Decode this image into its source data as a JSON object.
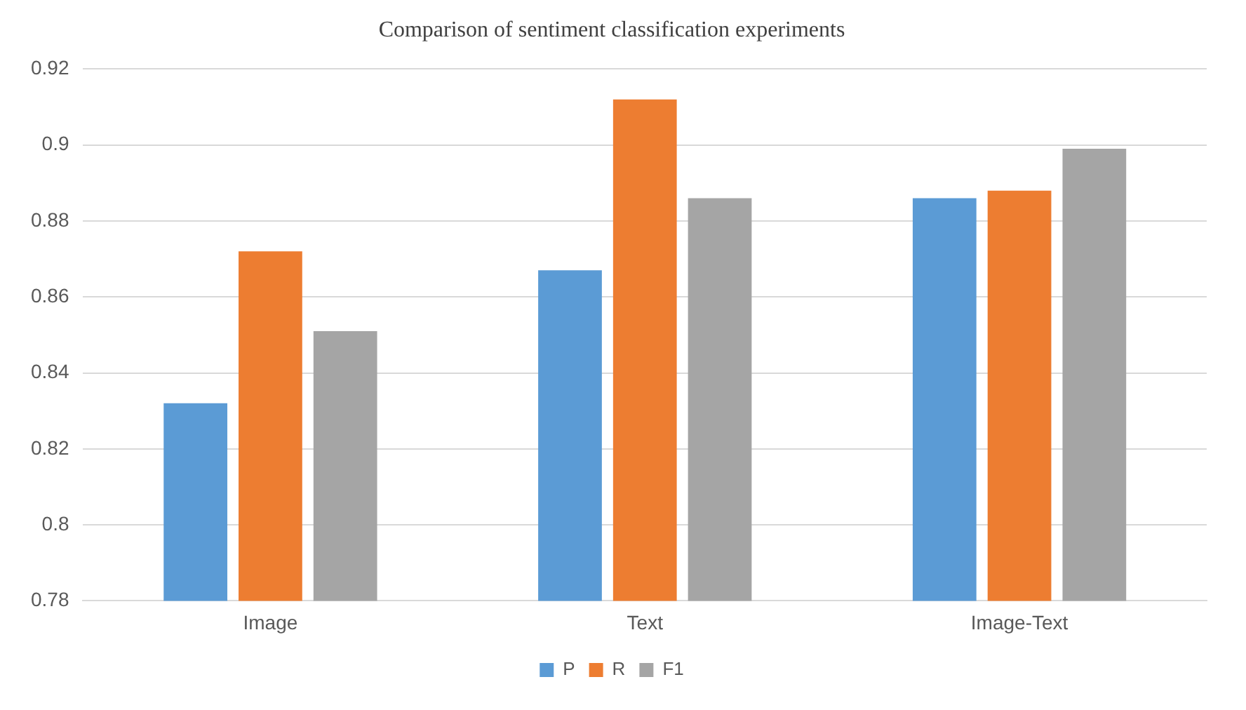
{
  "chart_data": {
    "type": "bar",
    "title": "Comparison of sentiment classification experiments",
    "categories": [
      "Image",
      "Text",
      "Image-Text"
    ],
    "series": [
      {
        "name": "P",
        "color": "#5b9bd5",
        "values": [
          0.832,
          0.867,
          0.886
        ]
      },
      {
        "name": "R",
        "color": "#ed7d31",
        "values": [
          0.872,
          0.912,
          0.888
        ]
      },
      {
        "name": "F1",
        "color": "#a5a5a5",
        "values": [
          0.851,
          0.886,
          0.899
        ]
      }
    ],
    "ylim": [
      0.78,
      0.92
    ],
    "yticks": [
      0.78,
      0.8,
      0.82,
      0.84,
      0.86,
      0.88,
      0.9,
      0.92
    ],
    "grid": "y",
    "legend": "bottom"
  }
}
